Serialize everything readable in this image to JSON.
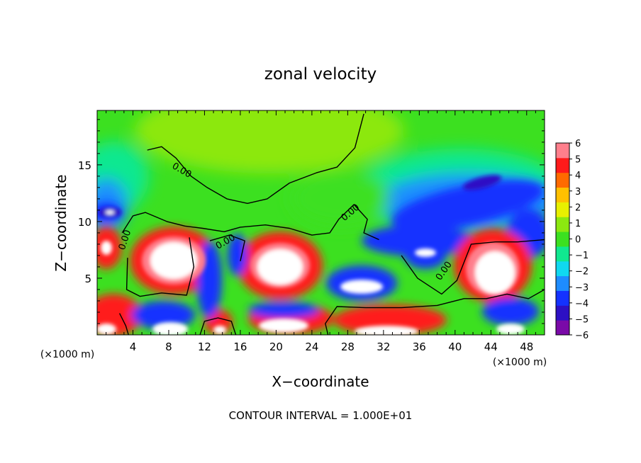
{
  "chart_data": {
    "type": "heatmap",
    "title": "zonal velocity",
    "xlabel": "X−coordinate",
    "ylabel": "Z−coordinate",
    "x_unit_left": "(×1000 m)",
    "x_unit_right": "(×1000 m)",
    "footer": "CONTOUR INTERVAL = 1.000E+01",
    "xlim": [
      0,
      50
    ],
    "ylim": [
      0,
      19.8
    ],
    "x_ticks": [
      4,
      8,
      12,
      16,
      20,
      24,
      28,
      32,
      36,
      40,
      44,
      48
    ],
    "x_tick_labels": [
      "4",
      "8",
      "12",
      "16",
      "20",
      "24",
      "28",
      "32",
      "36",
      "40",
      "44",
      "48"
    ],
    "y_ticks": [
      5,
      10,
      15
    ],
    "y_tick_labels": [
      "5",
      "10",
      "15"
    ],
    "colorbar": {
      "range": [
        -6,
        6
      ],
      "ticks": [
        6,
        5,
        4,
        3,
        2,
        1,
        0,
        -1,
        -2,
        -3,
        -4,
        -5,
        -6
      ],
      "tick_labels": [
        "6",
        "5",
        "4",
        "3",
        "2",
        "1",
        "0",
        "−1",
        "−2",
        "−3",
        "−4",
        "−5",
        "−6"
      ],
      "colors": [
        "#7a0aa8",
        "#2d10c4",
        "#1432ff",
        "#1e8cff",
        "#10d8f0",
        "#10e890",
        "#3ce020",
        "#8ce810",
        "#e8f000",
        "#ffc000",
        "#ff6a00",
        "#ff1a1a",
        "#ff7f8c"
      ]
    },
    "contour_labels": [
      {
        "x": 9.3,
        "y": 14.3,
        "text": "0.00",
        "angle": 30
      },
      {
        "x": 3.4,
        "y": 8.3,
        "text": "0.00",
        "angle": -72
      },
      {
        "x": 14.5,
        "y": 8.0,
        "text": "0.00",
        "angle": -30
      },
      {
        "x": 28.5,
        "y": 10.6,
        "text": "0.00",
        "angle": -40
      },
      {
        "x": 39.0,
        "y": 5.5,
        "text": "0.00",
        "angle": -55
      }
    ],
    "contours": [
      [
        [
          5.6,
          16.3
        ],
        [
          7.2,
          16.6
        ],
        [
          8.8,
          15.6
        ],
        [
          10.5,
          14.0
        ],
        [
          12.3,
          13.0
        ],
        [
          14.5,
          12.0
        ],
        [
          16.8,
          11.6
        ],
        [
          19.0,
          12.0
        ],
        [
          21.5,
          13.4
        ],
        [
          24.5,
          14.3
        ],
        [
          26.8,
          14.8
        ],
        [
          28.8,
          16.5
        ],
        [
          29.8,
          19.5
        ]
      ],
      [
        [
          2.8,
          9.0
        ],
        [
          4.0,
          10.5
        ],
        [
          5.4,
          10.8
        ],
        [
          7.8,
          10.0
        ],
        [
          9.8,
          9.6
        ],
        [
          11.8,
          9.4
        ],
        [
          14.2,
          9.1
        ],
        [
          16.0,
          9.5
        ],
        [
          18.8,
          9.7
        ],
        [
          21.5,
          9.4
        ],
        [
          24.0,
          8.8
        ],
        [
          26.0,
          9.0
        ],
        [
          27.0,
          10.2
        ],
        [
          28.7,
          11.5
        ],
        [
          30.2,
          10.2
        ],
        [
          29.8,
          9.0
        ],
        [
          31.5,
          8.4
        ]
      ],
      [
        [
          3.4,
          6.8
        ],
        [
          3.3,
          4.0
        ],
        [
          4.8,
          3.4
        ],
        [
          7.2,
          3.7
        ],
        [
          10.0,
          3.5
        ],
        [
          10.8,
          6.0
        ],
        [
          10.3,
          8.6
        ]
      ],
      [
        [
          12.6,
          8.3
        ],
        [
          14.8,
          8.8
        ],
        [
          16.5,
          8.3
        ],
        [
          16.0,
          6.5
        ]
      ],
      [
        [
          34.0,
          7.0
        ],
        [
          35.8,
          5.0
        ],
        [
          38.5,
          3.6
        ],
        [
          40.2,
          4.8
        ],
        [
          41.8,
          8.0
        ],
        [
          44.5,
          8.2
        ],
        [
          47.0,
          8.2
        ],
        [
          50.0,
          8.4
        ]
      ],
      [
        [
          50.0,
          4.0
        ],
        [
          48.2,
          3.2
        ],
        [
          45.8,
          3.6
        ],
        [
          43.5,
          3.2
        ],
        [
          41.0,
          3.2
        ],
        [
          38.0,
          2.6
        ],
        [
          34.0,
          2.4
        ],
        [
          30.0,
          2.4
        ],
        [
          26.8,
          2.5
        ],
        [
          25.5,
          1.0
        ],
        [
          25.8,
          0.0
        ]
      ],
      [
        [
          2.5,
          1.9
        ],
        [
          3.2,
          0.8
        ],
        [
          3.5,
          0.0
        ]
      ],
      [
        [
          11.5,
          0.0
        ],
        [
          12.0,
          1.2
        ],
        [
          13.5,
          1.5
        ],
        [
          15.0,
          1.2
        ],
        [
          15.5,
          0.0
        ]
      ]
    ]
  }
}
